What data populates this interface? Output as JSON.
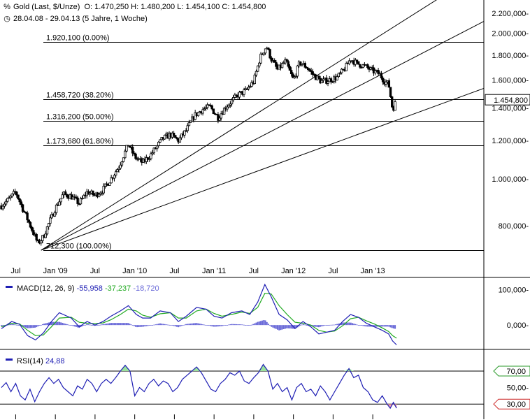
{
  "header": {
    "icon_top": "chart-type-icon",
    "title": "Gold (Last, $/Unze)",
    "ohlc": "O: 1.470,250  H: 1.480,200  L: 1.454,100  C: 1.454,800",
    "icon_bottom": "clock-icon",
    "range": "28.04.08 - 29.04.13 (5 Jahre, 1 Woche)"
  },
  "colors": {
    "candle": "#000000",
    "macd_line": "#1f1fb4",
    "signal_line": "#22aa22",
    "histogram": "#6a6ad8",
    "rsi_line": "#1f1fb4",
    "rsi_overbought_fill": "#9be39b",
    "rsi_oversold_fill": "#f0a0b0",
    "marker_70": "#2a9a2a",
    "marker_30": "#cc2222",
    "grid": "#000000"
  },
  "chart_data": [
    {
      "type": "candlestick",
      "title": "Gold (Last, $/Unze)",
      "y_scale": "log",
      "ylim": [
        680,
        2250
      ],
      "y_ticks": [
        {
          "value": 2200,
          "label": "2.200,000-"
        },
        {
          "value": 2000,
          "label": "2.000,000-"
        },
        {
          "value": 1800,
          "label": "1.800,000-"
        },
        {
          "value": 1600,
          "label": "1.600,000-"
        },
        {
          "value": 1400,
          "label": "1.400,000-"
        },
        {
          "value": 1200,
          "label": "1.200,000-"
        },
        {
          "value": 1000,
          "label": "1.000,000-"
        },
        {
          "value": 800,
          "label": "800,000-"
        }
      ],
      "x_ticks": [
        "Jul",
        "Jan '09",
        "Jul",
        "Jan '10",
        "Jul",
        "Jan '11",
        "Jul",
        "Jan '12",
        "Jul",
        "Jan '13"
      ],
      "x_tick_dates": [
        2008.5,
        2009.0,
        2009.5,
        2010.0,
        2010.5,
        2011.0,
        2011.5,
        2012.0,
        2012.5,
        2013.0
      ],
      "x_range": [
        2008.32,
        2013.32
      ],
      "close_series": [
        [
          2008.32,
          880
        ],
        [
          2008.42,
          910
        ],
        [
          2008.5,
          940
        ],
        [
          2008.6,
          860
        ],
        [
          2008.7,
          790
        ],
        [
          2008.78,
          735
        ],
        [
          2008.85,
          760
        ],
        [
          2008.92,
          810
        ],
        [
          2009.0,
          870
        ],
        [
          2009.1,
          930
        ],
        [
          2009.2,
          920
        ],
        [
          2009.3,
          890
        ],
        [
          2009.4,
          940
        ],
        [
          2009.5,
          925
        ],
        [
          2009.6,
          950
        ],
        [
          2009.7,
          1000
        ],
        [
          2009.8,
          1060
        ],
        [
          2009.92,
          1180
        ],
        [
          2010.0,
          1110
        ],
        [
          2010.1,
          1080
        ],
        [
          2010.2,
          1120
        ],
        [
          2010.35,
          1210
        ],
        [
          2010.45,
          1235
        ],
        [
          2010.55,
          1200
        ],
        [
          2010.65,
          1260
        ],
        [
          2010.75,
          1350
        ],
        [
          2010.85,
          1390
        ],
        [
          2010.95,
          1410
        ],
        [
          2011.05,
          1340
        ],
        [
          2011.15,
          1410
        ],
        [
          2011.3,
          1490
        ],
        [
          2011.4,
          1520
        ],
        [
          2011.5,
          1590
        ],
        [
          2011.58,
          1780
        ],
        [
          2011.66,
          1880
        ],
        [
          2011.72,
          1770
        ],
        [
          2011.8,
          1680
        ],
        [
          2011.9,
          1750
        ],
        [
          2012.0,
          1600
        ],
        [
          2012.08,
          1740
        ],
        [
          2012.17,
          1700
        ],
        [
          2012.25,
          1640
        ],
        [
          2012.35,
          1590
        ],
        [
          2012.45,
          1600
        ],
        [
          2012.55,
          1620
        ],
        [
          2012.65,
          1690
        ],
        [
          2012.72,
          1770
        ],
        [
          2012.8,
          1730
        ],
        [
          2012.9,
          1710
        ],
        [
          2013.0,
          1670
        ],
        [
          2013.08,
          1650
        ],
        [
          2013.15,
          1590
        ],
        [
          2013.2,
          1570
        ],
        [
          2013.25,
          1390
        ],
        [
          2013.3,
          1455
        ]
      ],
      "last_value": {
        "value": 1454.8,
        "label": "1.454,800"
      },
      "fibonacci_levels": [
        {
          "value": 1920.1,
          "label": "1.920,100 (0.00%)"
        },
        {
          "value": 1458.72,
          "label": "1.458,720 (38.20%)"
        },
        {
          "value": 1316.2,
          "label": "1.316,200 (50.00%)"
        },
        {
          "value": 1173.68,
          "label": "1.173,680 (61.80%)"
        },
        {
          "value": 712.3,
          "label": "712,300 (100.00%)"
        }
      ],
      "fan_lines": [
        {
          "from": [
            2008.82,
            712.3
          ],
          "through": [
            2012.97,
            1920.1
          ]
        },
        {
          "from": [
            2008.82,
            712.3
          ],
          "through": [
            2013.28,
            1700
          ]
        },
        {
          "from": [
            2008.82,
            712.3
          ],
          "through": [
            2013.28,
            1318
          ]
        }
      ]
    },
    {
      "type": "line",
      "title": "MACD(12, 26, 9)",
      "legend": [
        "MACD(12, 26, 9)",
        "-55,958",
        "-37,237",
        "-18,720"
      ],
      "ylim": [
        -65,
        125
      ],
      "y_ticks": [
        {
          "value": 100,
          "label": "100,000-"
        },
        {
          "value": 0,
          "label": "0,000-"
        }
      ],
      "series": [
        {
          "name": "MACD",
          "values": [
            [
              2008.32,
              -10
            ],
            [
              2008.45,
              10
            ],
            [
              2008.55,
              2
            ],
            [
              2008.65,
              -30
            ],
            [
              2008.75,
              -42
            ],
            [
              2008.85,
              -22
            ],
            [
              2008.95,
              10
            ],
            [
              2009.05,
              35
            ],
            [
              2009.2,
              20
            ],
            [
              2009.3,
              -5
            ],
            [
              2009.4,
              10
            ],
            [
              2009.5,
              0
            ],
            [
              2009.6,
              10
            ],
            [
              2009.7,
              25
            ],
            [
              2009.82,
              40
            ],
            [
              2009.92,
              55
            ],
            [
              2010.02,
              30
            ],
            [
              2010.1,
              20
            ],
            [
              2010.2,
              20
            ],
            [
              2010.32,
              40
            ],
            [
              2010.45,
              35
            ],
            [
              2010.55,
              10
            ],
            [
              2010.65,
              25
            ],
            [
              2010.78,
              50
            ],
            [
              2010.9,
              45
            ],
            [
              2011.0,
              25
            ],
            [
              2011.1,
              20
            ],
            [
              2011.22,
              35
            ],
            [
              2011.35,
              40
            ],
            [
              2011.45,
              30
            ],
            [
              2011.55,
              65
            ],
            [
              2011.64,
              115
            ],
            [
              2011.72,
              80
            ],
            [
              2011.82,
              30
            ],
            [
              2011.92,
              15
            ],
            [
              2012.02,
              -10
            ],
            [
              2012.12,
              10
            ],
            [
              2012.22,
              -5
            ],
            [
              2012.32,
              -25
            ],
            [
              2012.42,
              -20
            ],
            [
              2012.52,
              -15
            ],
            [
              2012.62,
              10
            ],
            [
              2012.72,
              30
            ],
            [
              2012.82,
              22
            ],
            [
              2012.92,
              5
            ],
            [
              2013.02,
              -5
            ],
            [
              2013.12,
              -15
            ],
            [
              2013.2,
              -25
            ],
            [
              2013.25,
              -45
            ],
            [
              2013.3,
              -56
            ]
          ]
        },
        {
          "name": "Signal",
          "values": [
            [
              2008.32,
              -5
            ],
            [
              2008.45,
              5
            ],
            [
              2008.55,
              3
            ],
            [
              2008.65,
              -15
            ],
            [
              2008.75,
              -30
            ],
            [
              2008.85,
              -28
            ],
            [
              2008.95,
              -5
            ],
            [
              2009.05,
              20
            ],
            [
              2009.2,
              22
            ],
            [
              2009.3,
              8
            ],
            [
              2009.4,
              5
            ],
            [
              2009.5,
              4
            ],
            [
              2009.6,
              6
            ],
            [
              2009.7,
              15
            ],
            [
              2009.82,
              30
            ],
            [
              2009.92,
              45
            ],
            [
              2010.02,
              40
            ],
            [
              2010.1,
              28
            ],
            [
              2010.2,
              22
            ],
            [
              2010.32,
              32
            ],
            [
              2010.45,
              35
            ],
            [
              2010.55,
              20
            ],
            [
              2010.65,
              20
            ],
            [
              2010.78,
              40
            ],
            [
              2010.9,
              45
            ],
            [
              2011.0,
              33
            ],
            [
              2011.1,
              25
            ],
            [
              2011.22,
              30
            ],
            [
              2011.35,
              37
            ],
            [
              2011.45,
              33
            ],
            [
              2011.55,
              50
            ],
            [
              2011.64,
              90
            ],
            [
              2011.72,
              88
            ],
            [
              2011.82,
              55
            ],
            [
              2011.92,
              30
            ],
            [
              2012.02,
              8
            ],
            [
              2012.12,
              5
            ],
            [
              2012.22,
              0
            ],
            [
              2012.32,
              -15
            ],
            [
              2012.42,
              -20
            ],
            [
              2012.52,
              -17
            ],
            [
              2012.62,
              -2
            ],
            [
              2012.72,
              18
            ],
            [
              2012.82,
              22
            ],
            [
              2012.92,
              12
            ],
            [
              2013.02,
              3
            ],
            [
              2013.12,
              -8
            ],
            [
              2013.2,
              -18
            ],
            [
              2013.25,
              -30
            ],
            [
              2013.3,
              -37
            ]
          ]
        }
      ]
    },
    {
      "type": "line",
      "title": "RSI(14)",
      "legend": [
        "RSI(14)",
        "24,88"
      ],
      "ylim": [
        20,
        92
      ],
      "y_ticks": [
        {
          "value": 70,
          "label": "70,00"
        },
        {
          "value": 50,
          "label": "50,00-"
        },
        {
          "value": 30,
          "label": "30,00"
        }
      ],
      "series": [
        {
          "name": "RSI",
          "values": [
            [
              2008.32,
              50
            ],
            [
              2008.38,
              56
            ],
            [
              2008.44,
              45
            ],
            [
              2008.5,
              55
            ],
            [
              2008.56,
              40
            ],
            [
              2008.62,
              35
            ],
            [
              2008.68,
              48
            ],
            [
              2008.74,
              33
            ],
            [
              2008.8,
              45
            ],
            [
              2008.86,
              55
            ],
            [
              2008.92,
              62
            ],
            [
              2008.98,
              55
            ],
            [
              2009.04,
              60
            ],
            [
              2009.1,
              50
            ],
            [
              2009.16,
              45
            ],
            [
              2009.22,
              40
            ],
            [
              2009.28,
              52
            ],
            [
              2009.34,
              48
            ],
            [
              2009.4,
              60
            ],
            [
              2009.46,
              55
            ],
            [
              2009.52,
              45
            ],
            [
              2009.58,
              55
            ],
            [
              2009.64,
              60
            ],
            [
              2009.7,
              55
            ],
            [
              2009.76,
              62
            ],
            [
              2009.82,
              70
            ],
            [
              2009.88,
              77
            ],
            [
              2009.94,
              70
            ],
            [
              2010.0,
              40
            ],
            [
              2010.06,
              50
            ],
            [
              2010.12,
              45
            ],
            [
              2010.18,
              55
            ],
            [
              2010.24,
              60
            ],
            [
              2010.3,
              52
            ],
            [
              2010.36,
              58
            ],
            [
              2010.42,
              55
            ],
            [
              2010.48,
              45
            ],
            [
              2010.54,
              50
            ],
            [
              2010.6,
              60
            ],
            [
              2010.66,
              65
            ],
            [
              2010.72,
              70
            ],
            [
              2010.78,
              75
            ],
            [
              2010.84,
              68
            ],
            [
              2010.9,
              58
            ],
            [
              2010.96,
              48
            ],
            [
              2011.02,
              45
            ],
            [
              2011.08,
              55
            ],
            [
              2011.14,
              60
            ],
            [
              2011.2,
              68
            ],
            [
              2011.26,
              65
            ],
            [
              2011.32,
              70
            ],
            [
              2011.38,
              58
            ],
            [
              2011.44,
              55
            ],
            [
              2011.5,
              62
            ],
            [
              2011.56,
              68
            ],
            [
              2011.62,
              78
            ],
            [
              2011.68,
              70
            ],
            [
              2011.74,
              48
            ],
            [
              2011.8,
              55
            ],
            [
              2011.86,
              45
            ],
            [
              2011.92,
              50
            ],
            [
              2011.98,
              35
            ],
            [
              2012.04,
              50
            ],
            [
              2012.1,
              55
            ],
            [
              2012.16,
              45
            ],
            [
              2012.22,
              48
            ],
            [
              2012.28,
              40
            ],
            [
              2012.34,
              52
            ],
            [
              2012.4,
              45
            ],
            [
              2012.46,
              35
            ],
            [
              2012.52,
              45
            ],
            [
              2012.58,
              55
            ],
            [
              2012.64,
              65
            ],
            [
              2012.7,
              73
            ],
            [
              2012.76,
              62
            ],
            [
              2012.82,
              65
            ],
            [
              2012.88,
              50
            ],
            [
              2012.94,
              45
            ],
            [
              2013.0,
              35
            ],
            [
              2013.06,
              32
            ],
            [
              2013.12,
              40
            ],
            [
              2013.18,
              30
            ],
            [
              2013.22,
              25
            ],
            [
              2013.26,
              32
            ],
            [
              2013.3,
              25
            ]
          ]
        }
      ]
    }
  ]
}
